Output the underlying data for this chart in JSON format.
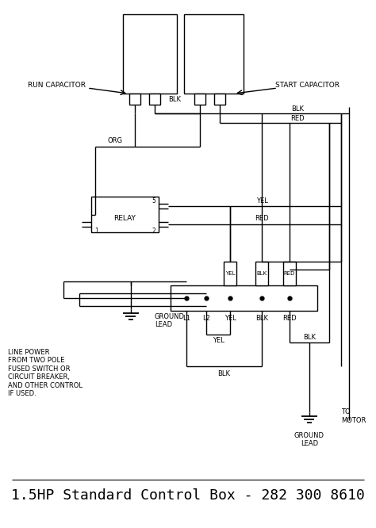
{
  "title": "1.5HP Standard Control Box - 282 300 8610",
  "bg_color": "#ffffff",
  "line_color": "#000000",
  "title_fontsize": 13,
  "label_fontsize": 6.5,
  "run_cap_label": "RUN CAPACITOR",
  "start_cap_label": "START CAPACITOR",
  "relay_label": "RELAY",
  "ground_label1": "GROUND\nLEAD",
  "ground_label2": "GROUND\nLEAD",
  "to_motor_label": "TO\nMOTOR",
  "line_power_label": "LINE POWER\nFROM TWO POLE\nFUSED SWITCH OR\nCIRCUIT BREAKER,\nAND OTHER CONTROL\nIF USED.",
  "terminal_labels": [
    "L1",
    "L2",
    "YEL",
    "BLK",
    "RED"
  ],
  "relay_pins": [
    "5",
    "1",
    "2"
  ],
  "figw": 4.74,
  "figh": 6.66,
  "dpi": 100
}
